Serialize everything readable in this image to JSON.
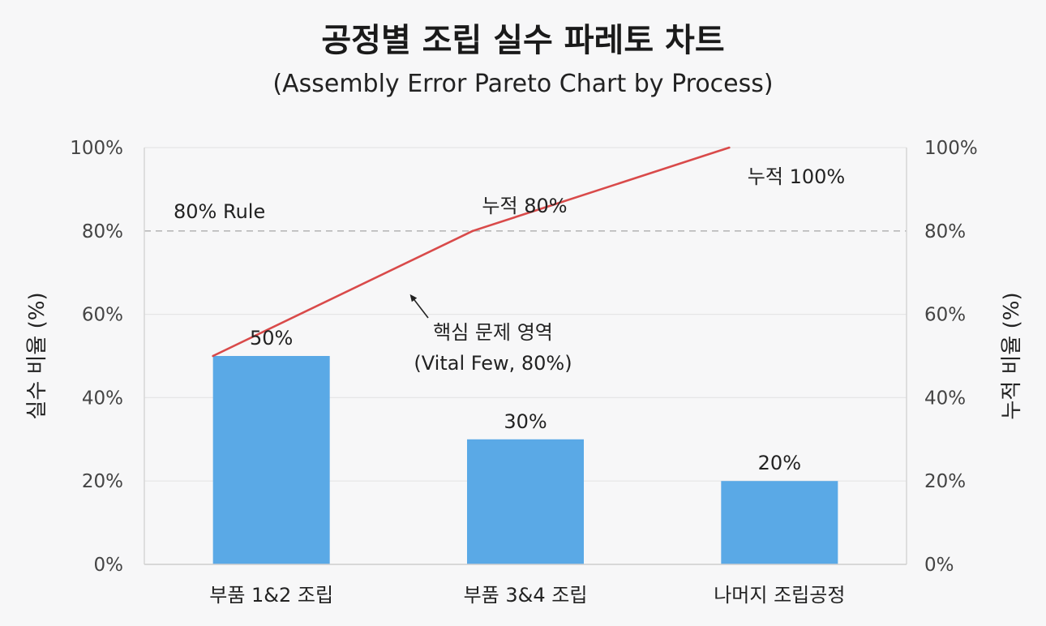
{
  "chart_data": {
    "type": "bar",
    "title": "공정별 조립 실수 파레토 차트",
    "subtitle": "(Assembly Error Pareto Chart by Process)",
    "categories": [
      "부품 1&2 조립",
      "부품 3&4 조립",
      "나머지 조립공정"
    ],
    "series": [
      {
        "type": "bar",
        "axis": "left",
        "values": [
          50,
          30,
          20
        ],
        "data_labels": [
          "50%",
          "30%",
          "20%"
        ],
        "color": "#5aa9e6"
      },
      {
        "type": "line",
        "axis": "right",
        "values": [
          50,
          80,
          100
        ],
        "color": "#d94a4a"
      }
    ],
    "ylabel_left": "실수 비율 (%)",
    "ylabel_right": "누적 비율 (%)",
    "ylim": [
      0,
      100
    ],
    "y_ticks": [
      "0%",
      "20%",
      "40%",
      "60%",
      "80%",
      "100%"
    ],
    "grid": true,
    "reference_line": {
      "value": 80,
      "label": "80% Rule",
      "style": "dashed"
    },
    "annotations": [
      {
        "text": "누적 80%",
        "category": "부품 3&4 조립",
        "value": 80
      },
      {
        "text": "누적 100%",
        "category": "나머지 조립공정",
        "value": 100
      },
      {
        "text_lines": [
          "핵심 문제 영역",
          "(Vital Few, 80%)"
        ],
        "arrow": true
      }
    ]
  }
}
